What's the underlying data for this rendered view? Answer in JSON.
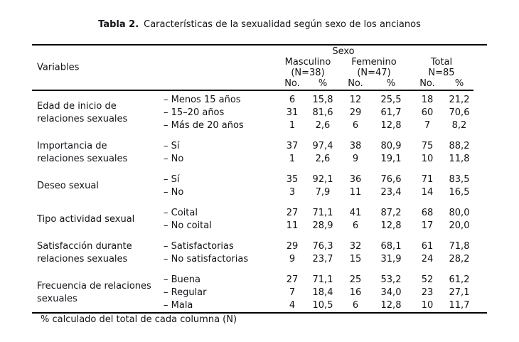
{
  "table_title": {
    "label": "Tabla 2.",
    "caption": "Características de la sexualidad según sexo de los ancianos"
  },
  "header": {
    "variables": "Variables",
    "sexo": "Sexo",
    "col_masculino": "Masculino",
    "col_masculino_n": "(N=38)",
    "col_femenino": "Femenino",
    "col_femenino_n": "(N=47)",
    "col_total": "Total",
    "col_total_n": "N=85",
    "no": "No.",
    "pct": "%"
  },
  "sections": [
    {
      "variable": [
        "Edad de inicio de",
        "relaciones sexuales"
      ],
      "rows": [
        {
          "item": "– Menos 15 años",
          "values": [
            "6",
            "15,8",
            "12",
            "25,5",
            "18",
            "21,2"
          ]
        },
        {
          "item": "– 15–20 años",
          "values": [
            "31",
            "81,6",
            "29",
            "61,7",
            "60",
            "70,6"
          ]
        },
        {
          "item": "– Más de 20 años",
          "values": [
            "1",
            "2,6",
            "6",
            "12,8",
            "7",
            "8,2"
          ]
        }
      ]
    },
    {
      "variable": [
        "Importancia de",
        "relaciones sexuales"
      ],
      "rows": [
        {
          "item": "– Sí",
          "values": [
            "37",
            "97,4",
            "38",
            "80,9",
            "75",
            "88,2"
          ]
        },
        {
          "item": "– No",
          "values": [
            "1",
            "2,6",
            "9",
            "19,1",
            "10",
            "11,8"
          ]
        }
      ]
    },
    {
      "variable": [
        "Deseo sexual"
      ],
      "rows": [
        {
          "item": "– Sí",
          "values": [
            "35",
            "92,1",
            "36",
            "76,6",
            "71",
            "83,5"
          ]
        },
        {
          "item": "– No",
          "values": [
            "3",
            "7,9",
            "11",
            "23,4",
            "14",
            "16,5"
          ]
        }
      ]
    },
    {
      "variable": [
        "Tipo actividad sexual"
      ],
      "rows": [
        {
          "item": "– Coital",
          "values": [
            "27",
            "71,1",
            "41",
            "87,2",
            "68",
            "80,0"
          ]
        },
        {
          "item": "– No coital",
          "values": [
            "11",
            "28,9",
            "6",
            "12,8",
            "17",
            "20,0"
          ]
        }
      ]
    },
    {
      "variable": [
        "Satisfacción durante",
        "relaciones sexuales"
      ],
      "rows": [
        {
          "item": "– Satisfactorias",
          "values": [
            "29",
            "76,3",
            "32",
            "68,1",
            "61",
            "71,8"
          ]
        },
        {
          "item": "– No satisfactorias",
          "values": [
            "9",
            "23,7",
            "15",
            "31,9",
            "24",
            "28,2"
          ]
        }
      ]
    },
    {
      "variable": [
        "Frecuencia de relaciones",
        "sexuales"
      ],
      "rows": [
        {
          "item": "– Buena",
          "values": [
            "27",
            "71,1",
            "25",
            "53,2",
            "52",
            "61,2"
          ]
        },
        {
          "item": "– Regular",
          "values": [
            "7",
            "18,4",
            "16",
            "34,0",
            "23",
            "27,1"
          ]
        },
        {
          "item": "– Mala",
          "values": [
            "4",
            "10,5",
            "6",
            "12,8",
            "10",
            "11,7"
          ]
        }
      ]
    }
  ],
  "footnote": "% calculado del total de cada columna (N)",
  "colors": {
    "background": "#ffffff",
    "text": "#121218",
    "rule": "#000000"
  }
}
